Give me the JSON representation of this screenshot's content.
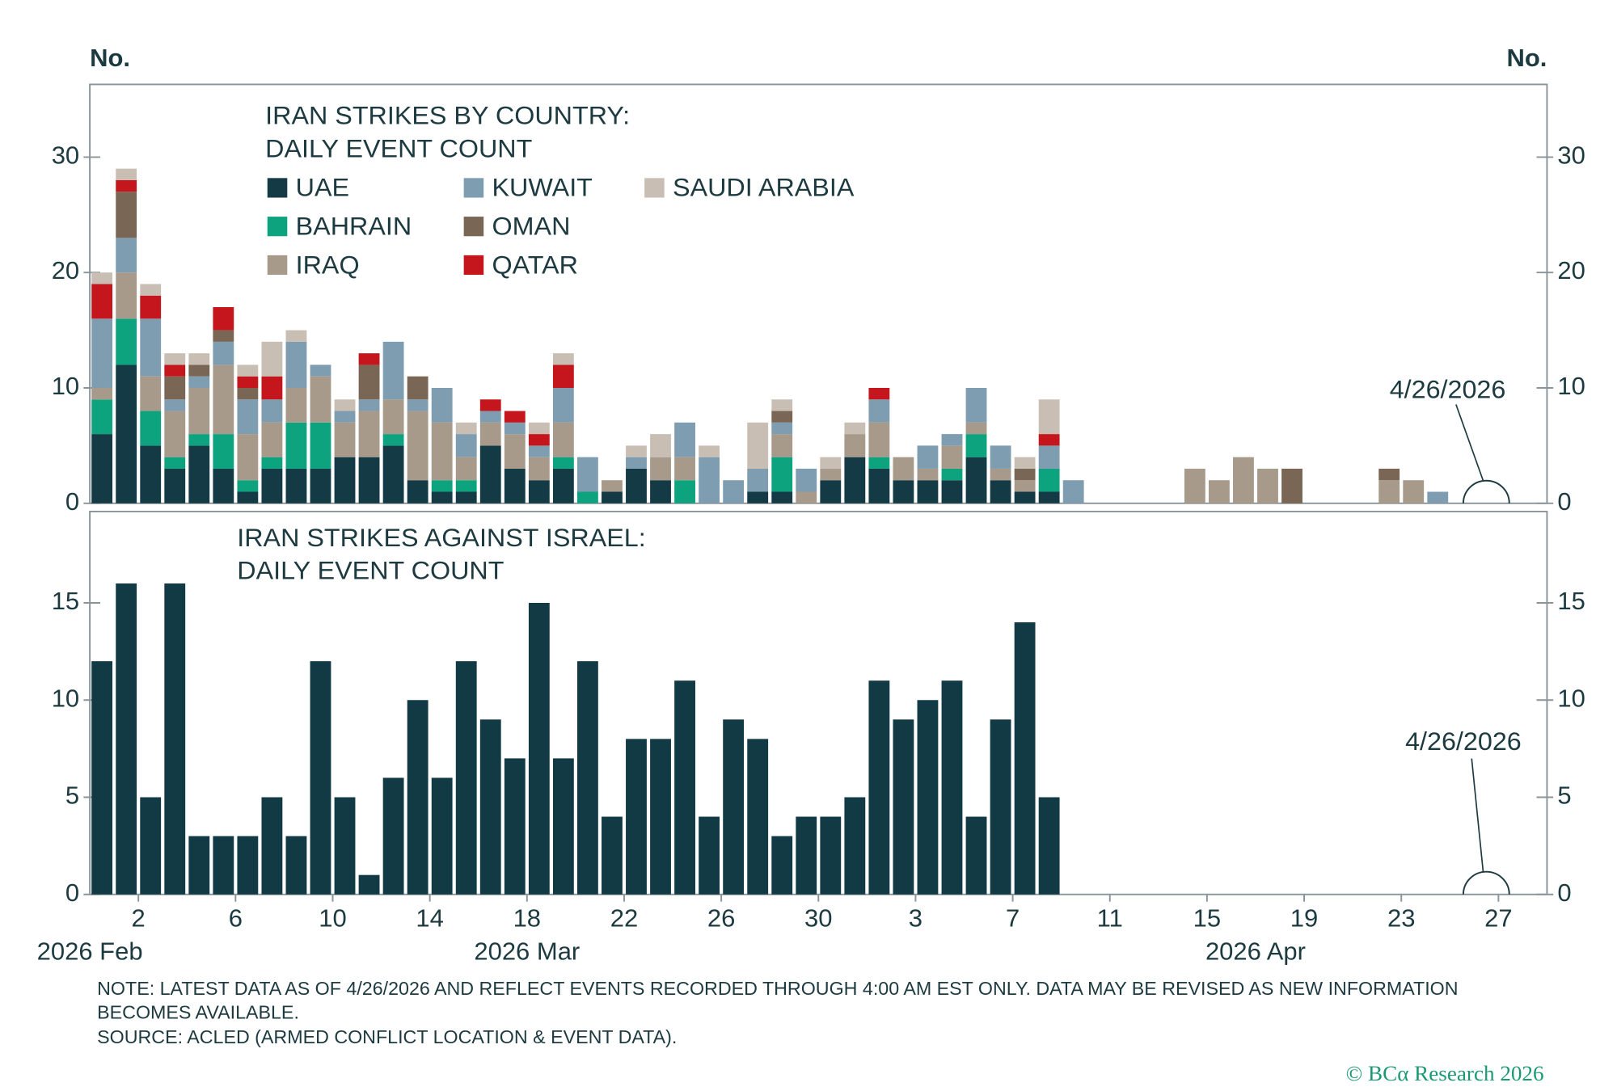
{
  "chart_data": [
    {
      "type": "stacked_bar",
      "title": [
        "IRAN STRIKES BY COUNTRY:",
        "DAILY EVENT COUNT"
      ],
      "y_label": "No.",
      "y2_label": "No.",
      "x": [
        "2026-02-28",
        "2026-03-01",
        "2026-03-02",
        "2026-03-03",
        "2026-03-04",
        "2026-03-05",
        "2026-03-06",
        "2026-03-07",
        "2026-03-08",
        "2026-03-09",
        "2026-03-10",
        "2026-03-11",
        "2026-03-12",
        "2026-03-13",
        "2026-03-14",
        "2026-03-15",
        "2026-03-16",
        "2026-03-17",
        "2026-03-18",
        "2026-03-19",
        "2026-03-20",
        "2026-03-21",
        "2026-03-22",
        "2026-03-23",
        "2026-03-24",
        "2026-03-25",
        "2026-03-26",
        "2026-03-27",
        "2026-03-28",
        "2026-03-29",
        "2026-03-30",
        "2026-03-31",
        "2026-04-01",
        "2026-04-02",
        "2026-04-03",
        "2026-04-04",
        "2026-04-05",
        "2026-04-06",
        "2026-04-07",
        "2026-04-08",
        "2026-04-09",
        "2026-04-10",
        "2026-04-11",
        "2026-04-12",
        "2026-04-13",
        "2026-04-14",
        "2026-04-15",
        "2026-04-16",
        "2026-04-17",
        "2026-04-18",
        "2026-04-19",
        "2026-04-20",
        "2026-04-21",
        "2026-04-22",
        "2026-04-23",
        "2026-04-24"
      ],
      "xlim": [
        "2026-02-28",
        "2026-04-29"
      ],
      "ylim": [
        0,
        36.3
      ],
      "yticks": [
        0,
        10,
        20,
        30
      ],
      "y2lim": [
        0,
        36.3
      ],
      "y2ticks": [
        0,
        10,
        20,
        30
      ],
      "series": [
        {
          "name": "UAE",
          "color": "#133a45",
          "values": [
            6,
            12,
            5,
            3,
            5,
            3,
            1,
            3,
            3,
            3,
            4,
            4,
            5,
            2,
            1,
            1,
            5,
            3,
            2,
            3,
            0,
            1,
            3,
            2,
            0,
            0,
            0,
            1,
            1,
            0,
            2,
            4,
            3,
            2,
            2,
            2,
            4,
            2,
            1,
            1,
            0,
            0,
            0,
            0,
            0,
            0,
            0,
            0,
            0,
            0,
            0,
            0,
            0,
            0,
            0,
            0
          ]
        },
        {
          "name": "BAHRAIN",
          "color": "#0ea37f",
          "values": [
            3,
            4,
            3,
            1,
            1,
            3,
            1,
            1,
            4,
            4,
            0,
            0,
            1,
            0,
            1,
            1,
            0,
            0,
            0,
            1,
            1,
            0,
            0,
            0,
            2,
            0,
            0,
            0,
            3,
            0,
            0,
            0,
            1,
            0,
            0,
            1,
            2,
            0,
            0,
            2,
            0,
            0,
            0,
            0,
            0,
            0,
            0,
            0,
            0,
            0,
            0,
            0,
            0,
            0,
            0,
            0
          ]
        },
        {
          "name": "IRAQ",
          "color": "#a89a8a",
          "values": [
            1,
            4,
            3,
            4,
            4,
            6,
            4,
            3,
            3,
            4,
            3,
            4,
            3,
            6,
            5,
            2,
            2,
            3,
            2,
            3,
            0,
            1,
            0,
            2,
            2,
            0,
            0,
            0,
            2,
            1,
            1,
            2,
            3,
            2,
            1,
            2,
            1,
            1,
            1,
            0,
            0,
            0,
            0,
            0,
            0,
            3,
            2,
            4,
            3,
            0,
            0,
            0,
            0,
            2,
            2,
            0
          ]
        },
        {
          "name": "KUWAIT",
          "color": "#7f9db0",
          "values": [
            6,
            3,
            5,
            1,
            1,
            2,
            3,
            2,
            4,
            1,
            1,
            1,
            5,
            1,
            3,
            2,
            1,
            1,
            1,
            3,
            3,
            0,
            1,
            0,
            3,
            4,
            2,
            2,
            1,
            2,
            0,
            0,
            2,
            0,
            2,
            1,
            3,
            2,
            0,
            2,
            2,
            0,
            0,
            0,
            0,
            0,
            0,
            0,
            0,
            0,
            0,
            0,
            0,
            0,
            0,
            1
          ]
        },
        {
          "name": "OMAN",
          "color": "#7a6654",
          "values": [
            0,
            4,
            0,
            2,
            1,
            1,
            1,
            0,
            0,
            0,
            0,
            3,
            0,
            2,
            0,
            0,
            0,
            0,
            0,
            0,
            0,
            0,
            0,
            0,
            0,
            0,
            0,
            0,
            1,
            0,
            0,
            0,
            0,
            0,
            0,
            0,
            0,
            0,
            1,
            0,
            0,
            0,
            0,
            0,
            0,
            0,
            0,
            0,
            0,
            3,
            0,
            0,
            0,
            1,
            0,
            0
          ]
        },
        {
          "name": "QATAR",
          "color": "#c4161c",
          "values": [
            3,
            1,
            2,
            1,
            0,
            2,
            1,
            2,
            0,
            0,
            0,
            1,
            0,
            0,
            0,
            0,
            1,
            1,
            1,
            2,
            0,
            0,
            0,
            0,
            0,
            0,
            0,
            0,
            0,
            0,
            0,
            0,
            1,
            0,
            0,
            0,
            0,
            0,
            0,
            1,
            0,
            0,
            0,
            0,
            0,
            0,
            0,
            0,
            0,
            0,
            0,
            0,
            0,
            0,
            0,
            0
          ]
        },
        {
          "name": "SAUDI ARABIA",
          "color": "#c8beb3",
          "values": [
            1,
            1,
            1,
            1,
            1,
            0,
            1,
            3,
            1,
            0,
            1,
            0,
            0,
            0,
            0,
            1,
            0,
            0,
            1,
            1,
            0,
            0,
            1,
            2,
            0,
            1,
            0,
            4,
            1,
            0,
            1,
            1,
            0,
            0,
            0,
            0,
            0,
            0,
            1,
            3,
            0,
            0,
            0,
            0,
            0,
            0,
            0,
            0,
            0,
            0,
            0,
            0,
            0,
            0,
            0,
            0
          ]
        }
      ],
      "annotation": {
        "text": "4/26/2026",
        "x": "2026-04-26"
      }
    },
    {
      "type": "bar",
      "title": [
        "IRAN STRIKES AGAINST ISRAEL:",
        "DAILY EVENT COUNT"
      ],
      "x": [
        "2026-02-28",
        "2026-03-01",
        "2026-03-02",
        "2026-03-03",
        "2026-03-04",
        "2026-03-05",
        "2026-03-06",
        "2026-03-07",
        "2026-03-08",
        "2026-03-09",
        "2026-03-10",
        "2026-03-11",
        "2026-03-12",
        "2026-03-13",
        "2026-03-14",
        "2026-03-15",
        "2026-03-16",
        "2026-03-17",
        "2026-03-18",
        "2026-03-19",
        "2026-03-20",
        "2026-03-21",
        "2026-03-22",
        "2026-03-23",
        "2026-03-24",
        "2026-03-25",
        "2026-03-26",
        "2026-03-27",
        "2026-03-28",
        "2026-03-29",
        "2026-03-30",
        "2026-03-31",
        "2026-04-01",
        "2026-04-02",
        "2026-04-03",
        "2026-04-04",
        "2026-04-05",
        "2026-04-06",
        "2026-04-07",
        "2026-04-08"
      ],
      "values": [
        12,
        16,
        5,
        16,
        3,
        3,
        3,
        5,
        3,
        12,
        5,
        1,
        6,
        10,
        6,
        12,
        9,
        7,
        15,
        7,
        12,
        4,
        8,
        8,
        11,
        4,
        9,
        8,
        3,
        4,
        4,
        5,
        11,
        9,
        10,
        11,
        4,
        9,
        14,
        5
      ],
      "color": "#123a44",
      "xlim": [
        "2026-02-28",
        "2026-04-29"
      ],
      "xticks": [
        {
          "value": "2026-03-02",
          "label": "2"
        },
        {
          "value": "2026-03-06",
          "label": "6"
        },
        {
          "value": "2026-03-10",
          "label": "10"
        },
        {
          "value": "2026-03-14",
          "label": "14"
        },
        {
          "value": "2026-03-18",
          "label": "18"
        },
        {
          "value": "2026-03-22",
          "label": "22"
        },
        {
          "value": "2026-03-26",
          "label": "26"
        },
        {
          "value": "2026-03-30",
          "label": "30"
        },
        {
          "value": "2026-04-03",
          "label": "3"
        },
        {
          "value": "2026-04-07",
          "label": "7"
        },
        {
          "value": "2026-04-11",
          "label": "11"
        },
        {
          "value": "2026-04-15",
          "label": "15"
        },
        {
          "value": "2026-04-19",
          "label": "19"
        },
        {
          "value": "2026-04-23",
          "label": "23"
        },
        {
          "value": "2026-04-27",
          "label": "27"
        }
      ],
      "xgroups": [
        {
          "value": "2026-02-28",
          "label": "2026 Feb"
        },
        {
          "value": "2026-03-18",
          "label": "2026 Mar"
        },
        {
          "value": "2026-04-17",
          "label": "2026 Apr"
        }
      ],
      "ylim": [
        0,
        19.7
      ],
      "yticks": [
        0,
        5,
        10,
        15
      ],
      "y2lim": [
        0,
        19.7
      ],
      "y2ticks": [
        0,
        5,
        10,
        15
      ],
      "annotation": {
        "text": "4/26/2026",
        "x": "2026-04-26"
      }
    }
  ],
  "note": [
    "NOTE: LATEST DATA AS OF 4/26/2026 AND REFLECT EVENTS RECORDED THROUGH 4:00 AM EST ONLY. DATA MAY BE REVISED AS NEW INFORMATION",
    "BECOMES AVAILABLE."
  ],
  "source": "SOURCE: ACLED (ARMED CONFLICT LOCATION & EVENT DATA).",
  "copyright": "© BCα Research 2026"
}
